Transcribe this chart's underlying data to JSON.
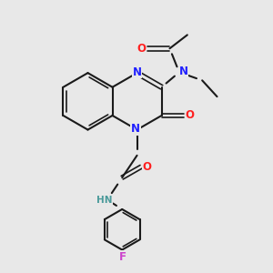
{
  "background_color": "#e8e8e8",
  "bond_color": "#1a1a1a",
  "N_color": "#2020ff",
  "O_color": "#ff2020",
  "F_color": "#cc44cc",
  "H_color": "#4a9a9a",
  "figsize": [
    3.0,
    3.0
  ],
  "dpi": 100,
  "xlim": [
    0,
    10
  ],
  "ylim": [
    0,
    10
  ]
}
